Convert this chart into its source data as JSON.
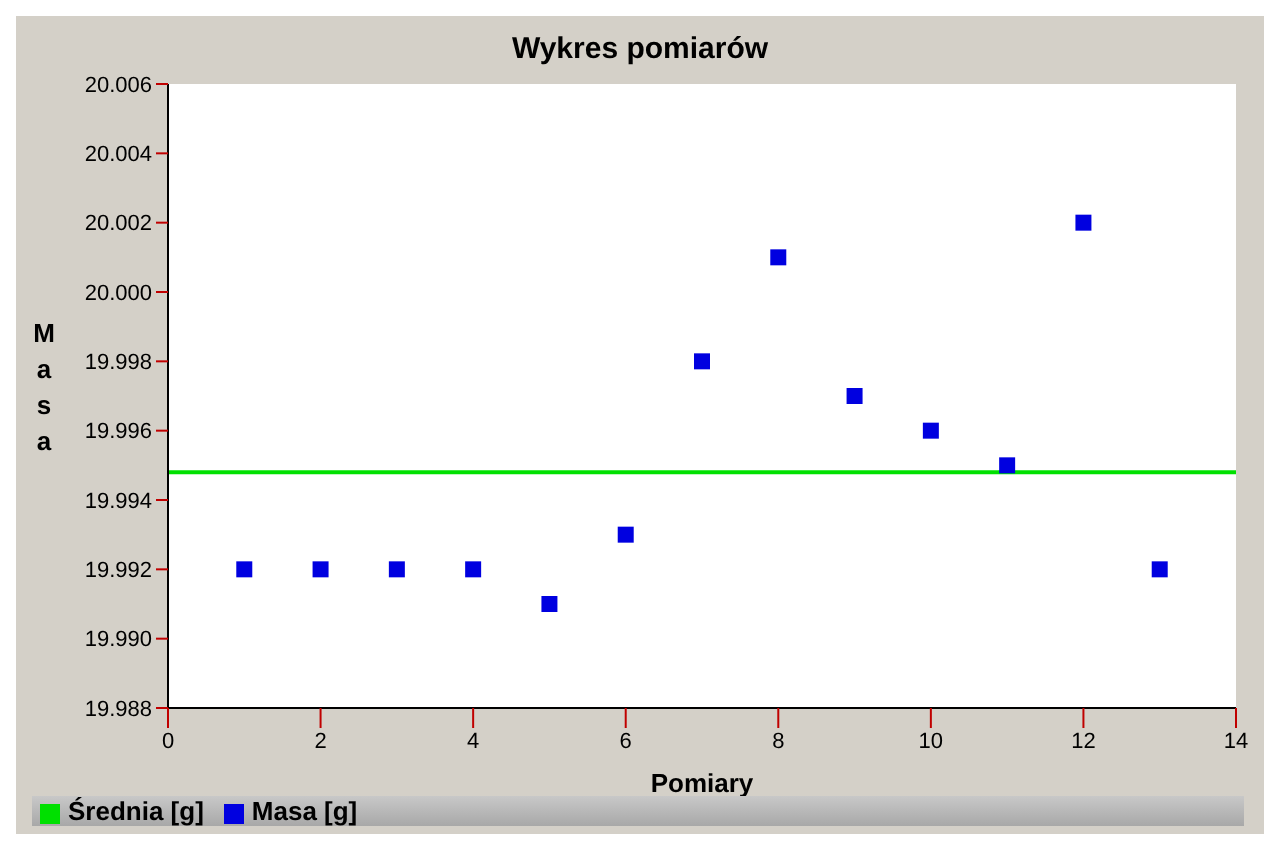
{
  "chart_data": {
    "type": "scatter",
    "title": "Wykres pomiarów",
    "xlabel": "Pomiary",
    "ylabel": "Masa",
    "xlim": [
      0,
      14
    ],
    "xticks": [
      0,
      2,
      4,
      6,
      8,
      10,
      12,
      14
    ],
    "ylim": [
      19.988,
      20.006
    ],
    "yticks": [
      19.988,
      {
        "value": 19.99,
        "label": "19.990"
      },
      19.992,
      19.994,
      19.996,
      19.998,
      {
        "value": 20.0,
        "label": "20.000"
      },
      20.002,
      20.004,
      20.006
    ],
    "grid": false,
    "legend": "bottom",
    "series": [
      {
        "name": "Średnia [g]",
        "type": "line",
        "marker": "none",
        "color": "#00e000",
        "x": [
          0,
          14
        ],
        "values": [
          19.9948,
          19.9948
        ]
      },
      {
        "name": "Masa [g]",
        "marker": "square",
        "color": "#0000e0",
        "x": [
          1,
          2,
          3,
          4,
          5,
          6,
          7,
          8,
          9,
          10,
          11,
          12,
          13
        ],
        "values": [
          19.992,
          19.992,
          19.992,
          19.992,
          19.991,
          19.993,
          19.998,
          20.001,
          19.997,
          19.996,
          19.995,
          20.002,
          19.992
        ]
      }
    ]
  }
}
